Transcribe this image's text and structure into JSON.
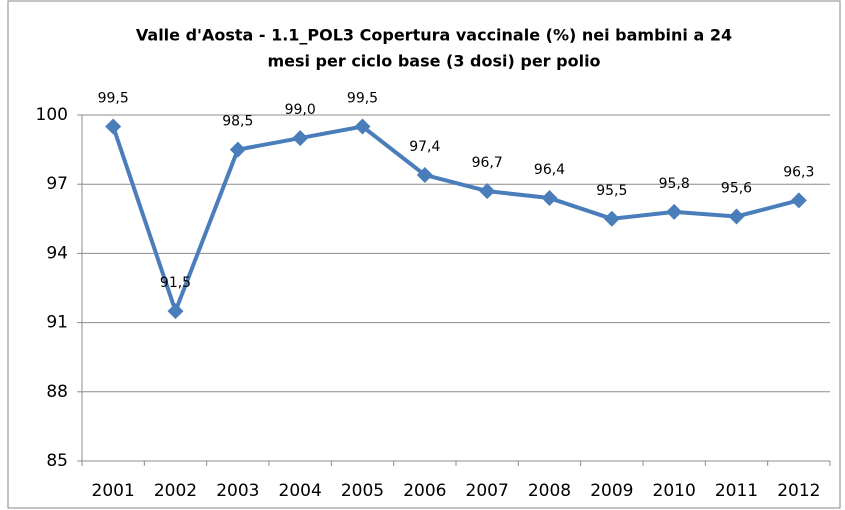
{
  "chart_data": {
    "type": "line",
    "title": [
      "Valle d'Aosta - 1.1_POL3 Copertura vaccinale (%) nei bambini a 24",
      "mesi per ciclo base (3 dosi) per polio"
    ],
    "categories": [
      "2001",
      "2002",
      "2003",
      "2004",
      "2005",
      "2006",
      "2007",
      "2008",
      "2009",
      "2010",
      "2011",
      "2012"
    ],
    "values": [
      99.5,
      91.5,
      98.5,
      99.0,
      99.5,
      97.4,
      96.7,
      96.4,
      95.5,
      95.8,
      95.6,
      96.3
    ],
    "value_labels": [
      "99,5",
      "91,5",
      "98,5",
      "99,0",
      "99,5",
      "97,4",
      "96,7",
      "96,4",
      "95,5",
      "95,8",
      "95,6",
      "96,3"
    ],
    "color": "#4a7ebb",
    "ylim": [
      85,
      100
    ],
    "yticks": [
      85,
      88,
      91,
      94,
      97,
      100
    ],
    "grid": true
  }
}
